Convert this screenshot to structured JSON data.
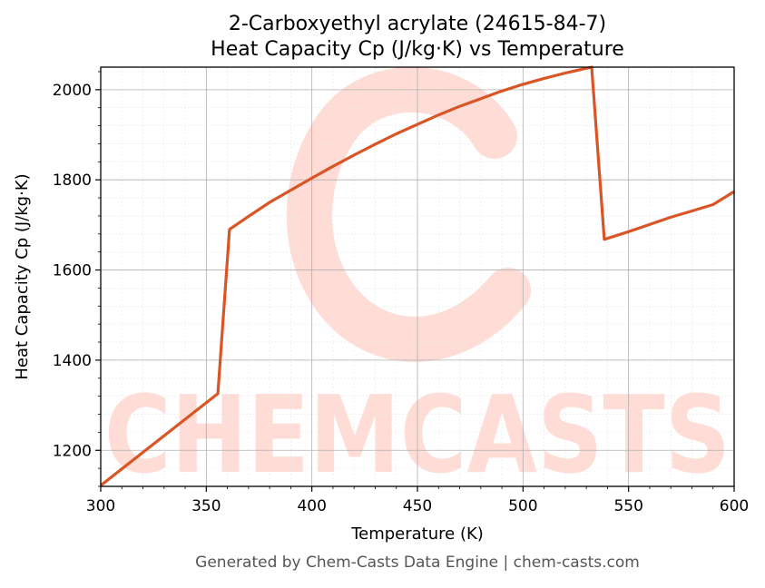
{
  "chart_data": {
    "type": "line",
    "title_line1": "2-Carboxyethyl acrylate (24615-84-7)",
    "title_line2": "Heat Capacity Cp (J/kg·K) vs Temperature",
    "xlabel": "Temperature (K)",
    "ylabel": "Heat Capacity Cp (J/kg·K)",
    "xlim": [
      300,
      600
    ],
    "ylim": [
      1120,
      2050
    ],
    "x_ticks": [
      300,
      350,
      400,
      450,
      500,
      550,
      600
    ],
    "y_ticks": [
      1200,
      1400,
      1600,
      1800,
      2000
    ],
    "grid": true,
    "line_color": "#d95525",
    "series": [
      {
        "x": [
          300,
          355.5,
          361,
          370,
          380,
          390,
          400,
          410,
          420,
          430,
          440,
          450,
          460,
          470,
          480,
          490,
          500,
          510,
          520,
          532.5,
          538.5,
          550,
          560,
          570,
          580,
          590,
          600
        ],
        "y": [
          1122,
          1326,
          1690,
          1719,
          1750,
          1777,
          1804,
          1830,
          1855,
          1879,
          1902,
          1923,
          1944,
          1963,
          1980,
          1997,
          2012,
          2025,
          2037,
          2050,
          1668,
          1685,
          1701,
          1717,
          1731,
          1745,
          1774
        ]
      }
    ]
  },
  "watermark": {
    "text": "CHEMCASTS",
    "color": "#ffdcd5"
  },
  "footer": "Generated by Chem-Casts Data Engine | chem-casts.com"
}
